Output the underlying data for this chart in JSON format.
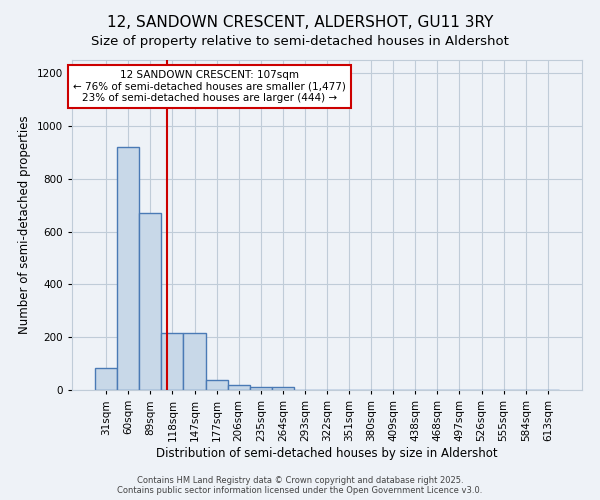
{
  "title_line1": "12, SANDOWN CRESCENT, ALDERSHOT, GU11 3RY",
  "title_line2": "Size of property relative to semi-detached houses in Aldershot",
  "xlabel": "Distribution of semi-detached houses by size in Aldershot",
  "ylabel": "Number of semi-detached properties",
  "categories": [
    "31sqm",
    "60sqm",
    "89sqm",
    "118sqm",
    "147sqm",
    "177sqm",
    "206sqm",
    "235sqm",
    "264sqm",
    "293sqm",
    "322sqm",
    "351sqm",
    "380sqm",
    "409sqm",
    "438sqm",
    "468sqm",
    "497sqm",
    "526sqm",
    "555sqm",
    "584sqm",
    "613sqm"
  ],
  "values": [
    85,
    920,
    670,
    215,
    215,
    38,
    20,
    10,
    10,
    0,
    0,
    0,
    0,
    0,
    0,
    0,
    0,
    0,
    0,
    0,
    0
  ],
  "bar_color": "#c8d8e8",
  "bar_edge_color": "#4a7ab5",
  "bar_edge_width": 1.0,
  "grid_color": "#c0ccd8",
  "background_color": "#eef2f7",
  "vline_x": 2.76,
  "vline_color": "#cc0000",
  "annotation_text": "12 SANDOWN CRESCENT: 107sqm\n← 76% of semi-detached houses are smaller (1,477)\n23% of semi-detached houses are larger (444) →",
  "annotation_box_color": "#ffffff",
  "annotation_box_edge": "#cc0000",
  "ylim": [
    0,
    1250
  ],
  "yticks": [
    0,
    200,
    400,
    600,
    800,
    1000,
    1200
  ],
  "footer_text": "Contains HM Land Registry data © Crown copyright and database right 2025.\nContains public sector information licensed under the Open Government Licence v3.0.",
  "title_fontsize": 11,
  "subtitle_fontsize": 9.5,
  "tick_fontsize": 7.5,
  "label_fontsize": 8.5,
  "annotation_fontsize": 7.5
}
